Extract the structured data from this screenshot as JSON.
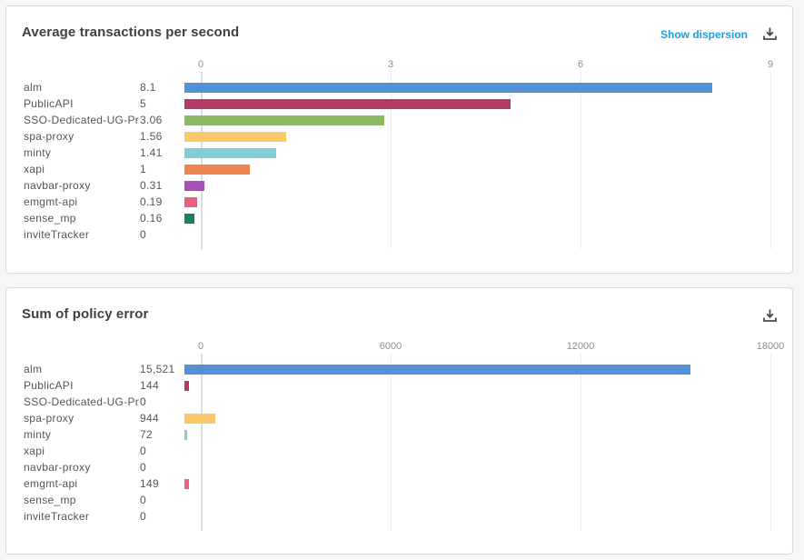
{
  "colors": {
    "page_bg": "#f6f6f6",
    "panel_border": "#d9d9d9",
    "title_color": "#404040",
    "label_color": "#555555",
    "tick_color": "#8c8c8c",
    "accent_link": "#1ba0dc",
    "icon_color": "#4a4a4a",
    "axis_line": "#d9dde4",
    "grid_line": "#ededed"
  },
  "panels": [
    {
      "title": "Average transactions per second",
      "actions": {
        "show_dispersion": "Show dispersion",
        "download_icon": "download-icon"
      },
      "chart_data": {
        "type": "bar",
        "orientation": "horizontal",
        "title": "Average transactions per second",
        "xlabel": "",
        "ylabel": "",
        "xlim": [
          0,
          9
        ],
        "x_ticks": [
          0,
          3,
          6,
          9
        ],
        "tick_labels": [
          "0",
          "3",
          "6",
          "9"
        ],
        "grid": true,
        "categories": [
          "alm",
          "PublicAPI",
          "SSO-Dedicated-UG-Pr…",
          "spa-proxy",
          "minty",
          "xapi",
          "navbar-proxy",
          "emgmt-api",
          "sense_mp",
          "inviteTracker"
        ],
        "values": [
          8.1,
          5,
          3.06,
          1.56,
          1.41,
          1,
          0.31,
          0.19,
          0.16,
          0
        ],
        "value_labels": [
          "8.1",
          "5",
          "3.06",
          "1.56",
          "1.41",
          "1",
          "0.31",
          "0.19",
          "0.16",
          "0"
        ],
        "bar_colors": [
          "#5291d5",
          "#b23a66",
          "#8cb962",
          "#f9c869",
          "#7fced1",
          "#ec8450",
          "#a552b8",
          "#eb5f80",
          "#1d7c64",
          "#cccccc"
        ]
      }
    },
    {
      "title": "Sum of policy error",
      "actions": {
        "download_icon": "download-icon"
      },
      "chart_data": {
        "type": "bar",
        "orientation": "horizontal",
        "title": "Sum of policy error",
        "xlabel": "",
        "ylabel": "",
        "xlim": [
          0,
          18000
        ],
        "x_ticks": [
          0,
          6000,
          12000,
          18000
        ],
        "tick_labels": [
          "0",
          "6000",
          "12000",
          "18000"
        ],
        "grid": true,
        "categories": [
          "alm",
          "PublicAPI",
          "SSO-Dedicated-UG-Pr…",
          "spa-proxy",
          "minty",
          "xapi",
          "navbar-proxy",
          "emgmt-api",
          "sense_mp",
          "inviteTracker"
        ],
        "values": [
          15521,
          144,
          0,
          944,
          72,
          0,
          0,
          149,
          0,
          0
        ],
        "value_labels": [
          "15,521",
          "144",
          "0",
          "944",
          "72",
          "0",
          "0",
          "149",
          "0",
          "0"
        ],
        "bar_colors": [
          "#5291d5",
          "#b23a66",
          "#8cb962",
          "#f9c869",
          "#7fced1",
          "#ec8450",
          "#a552b8",
          "#eb5f80",
          "#1d7c64",
          "#cccccc"
        ]
      }
    }
  ]
}
